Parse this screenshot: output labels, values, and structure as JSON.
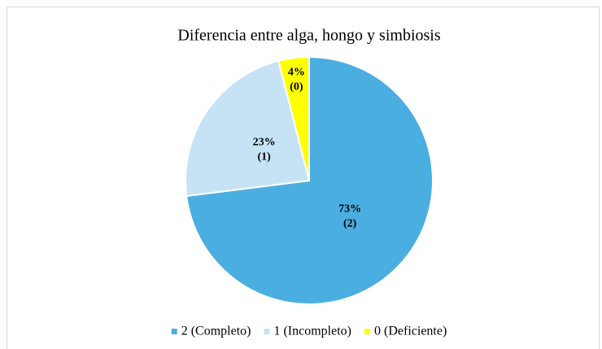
{
  "chart_data": {
    "type": "pie",
    "title": "Diferencia entre alga, hongo y simbiosis",
    "categories": [
      "2 (Completo)",
      "1 (Incompleto)",
      "0 (Deficiente)"
    ],
    "values": [
      73,
      23,
      4
    ],
    "value_labels": [
      "73%",
      "23%",
      "4%"
    ],
    "codes": [
      "(2)",
      "(1)",
      "(0)"
    ],
    "colors": [
      "#4BAEE0",
      "#C5E3F5",
      "#FFFF00"
    ],
    "legend": "bottom"
  }
}
